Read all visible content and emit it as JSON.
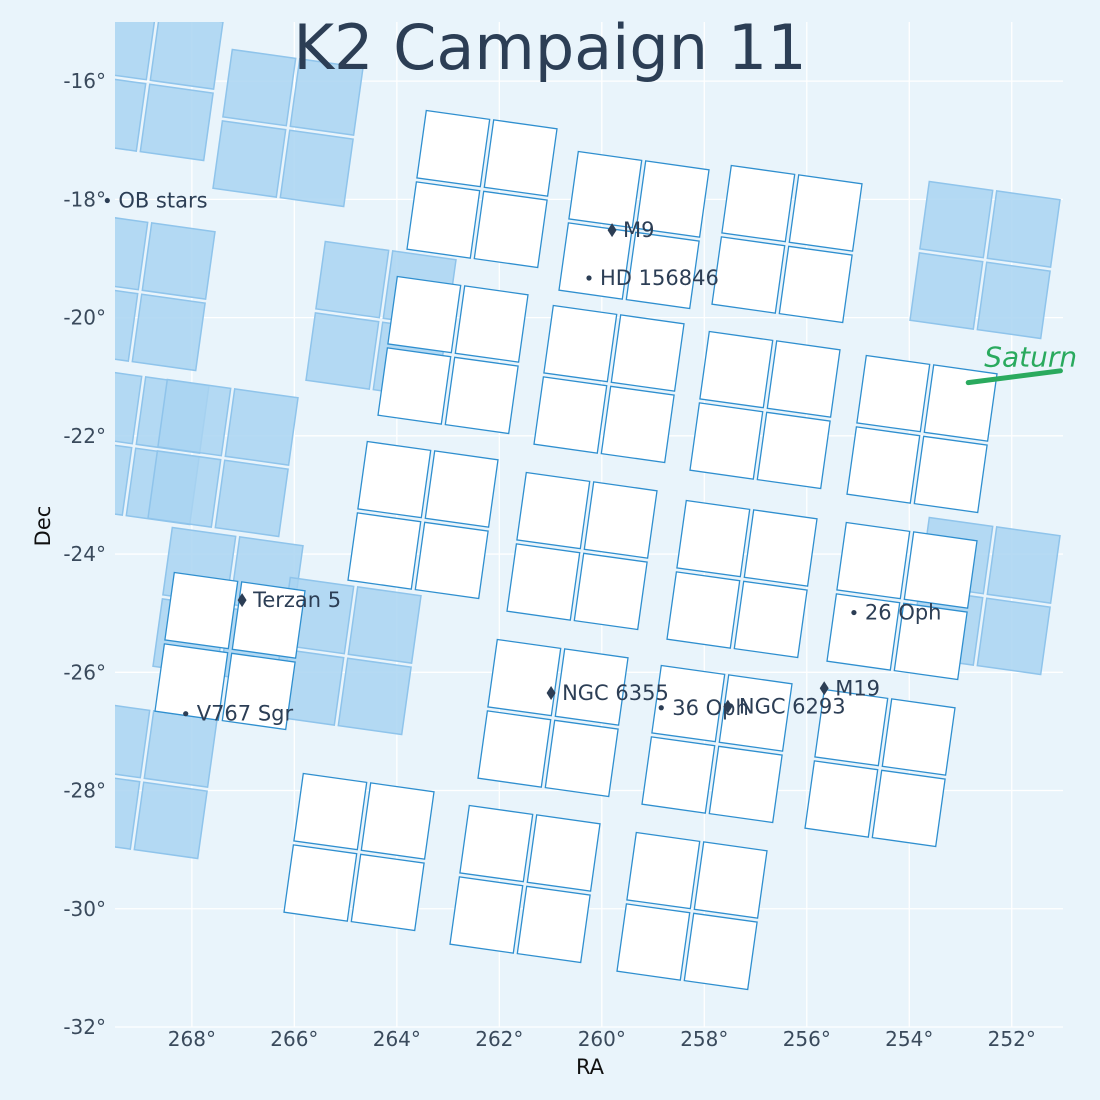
{
  "chart_data": {
    "type": "scatter",
    "title": "K2 Campaign 11",
    "xlabel": "RA",
    "ylabel": "Dec",
    "xlim": [
      269.5,
      251
    ],
    "ylim": [
      -32,
      -15
    ],
    "grid": true,
    "x_ticks": [
      268,
      266,
      264,
      262,
      260,
      258,
      256,
      254,
      252
    ],
    "x_tick_labels": [
      "268°",
      "266°",
      "264°",
      "262°",
      "260°",
      "258°",
      "256°",
      "254°",
      "252°"
    ],
    "y_ticks": [
      -16,
      -18,
      -20,
      -22,
      -24,
      -26,
      -28,
      -30,
      -32
    ],
    "y_tick_labels": [
      "-16°",
      "-18°",
      "-20°",
      "-22°",
      "-24°",
      "-26°",
      "-28°",
      "-30°",
      "-32°"
    ],
    "colors": {
      "background": "#e9f4fb",
      "active_ccd_fill": "#ffffff",
      "active_ccd_edge": "#2f8fcf",
      "inactive_ccd_fill": "#a9d3f1",
      "object_marker": "#2c3e55",
      "saturn_track": "#2aaa5e"
    },
    "objects": [
      {
        "label": "M9",
        "ra": 259.8,
        "dec": -18.52,
        "marker": "diamond"
      },
      {
        "label": "HD 156846",
        "ra": 260.25,
        "dec": -19.33,
        "marker": "dot"
      },
      {
        "label": "Terzan 5",
        "ra": 267.02,
        "dec": -24.78,
        "marker": "diamond"
      },
      {
        "label": "V767 Sgr",
        "ra": 268.12,
        "dec": -26.7,
        "marker": "dot"
      },
      {
        "label": "NGC 6355",
        "ra": 260.99,
        "dec": -26.35,
        "marker": "diamond"
      },
      {
        "label": "36 Oph",
        "ra": 258.84,
        "dec": -26.6,
        "marker": "dot"
      },
      {
        "label": "NGC 6293",
        "ra": 257.54,
        "dec": -26.58,
        "marker": "diamond"
      },
      {
        "label": "M19",
        "ra": 255.66,
        "dec": -26.27,
        "marker": "diamond"
      },
      {
        "label": "26 Oph",
        "ra": 255.08,
        "dec": -24.99,
        "marker": "dot"
      },
      {
        "label": "OB stars",
        "ra": 269.65,
        "dec": -18.02,
        "marker": "dot"
      }
    ],
    "saturn": {
      "label": "Saturn",
      "track": [
        [
          252.85,
          -21.1
        ],
        [
          251.05,
          -20.9
        ]
      ]
    }
  }
}
